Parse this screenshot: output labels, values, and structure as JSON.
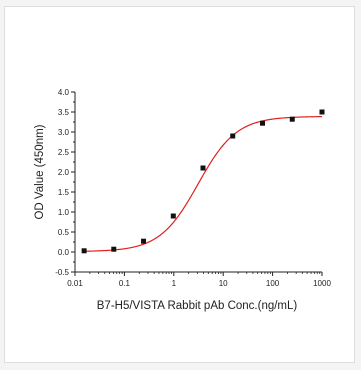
{
  "chart_data": {
    "type": "scatter",
    "title": "",
    "xlabel": "B7-H5/VISTA Rabbit pAb Conc.(ng/mL)",
    "ylabel": "OD Value (450nm)",
    "xscale": "log",
    "xlim": [
      0.01,
      1000
    ],
    "ylim": [
      -0.5,
      4.0
    ],
    "grid": false,
    "legend": "none",
    "x_ticks": [
      0.01,
      0.1,
      1,
      10,
      100,
      1000
    ],
    "x_tick_labels": [
      "0.01",
      "0.1",
      "1",
      "10",
      "100",
      "1000"
    ],
    "y_ticks": [
      -0.5,
      0.0,
      0.5,
      1.0,
      1.5,
      2.0,
      2.5,
      3.0,
      3.5,
      4.0
    ],
    "y_tick_labels": [
      "-0.5",
      "0.0",
      "0.5",
      "1.0",
      "1.5",
      "2.0",
      "2.5",
      "3.0",
      "3.5",
      "4.0"
    ],
    "series": [
      {
        "type": "scatter",
        "marker": "square",
        "color": "#111111",
        "x": [
          0.0153,
          0.061,
          0.244,
          0.977,
          3.9,
          15.6,
          62.5,
          250,
          1000
        ],
        "y": [
          0.03,
          0.07,
          0.27,
          0.9,
          2.1,
          2.9,
          3.22,
          3.32,
          3.5
        ]
      },
      {
        "type": "line",
        "style": "4PL fit",
        "color": "#e02020",
        "x_range": [
          0.0153,
          1000
        ],
        "params": {
          "bottom": 0.01,
          "top": 3.39,
          "ec50": 3.1,
          "hill": 1.12
        }
      }
    ]
  }
}
